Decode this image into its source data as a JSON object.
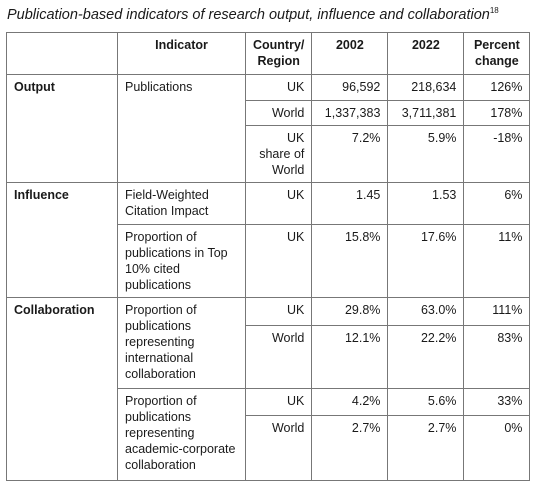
{
  "header": {
    "title": "Publication-based indicators of research output, influence and collaboration",
    "footnote": "18"
  },
  "table": {
    "columns": [
      "Indicator",
      "Country/ Region",
      "2002",
      "2022",
      "Percent change"
    ],
    "groups": [
      {
        "label": "Output",
        "indicators": [
          {
            "label": "Publications",
            "rows": [
              [
                "UK",
                "96,592",
                "218,634",
                "126%"
              ],
              [
                "World",
                "1,337,383",
                "3,711,381",
                "178%"
              ],
              [
                "UK share of World",
                "7.2%",
                "5.9%",
                "-18%"
              ]
            ]
          }
        ]
      },
      {
        "label": "Influence",
        "indicators": [
          {
            "label": "Field-Weighted Citation Impact",
            "rows": [
              [
                "UK",
                "1.45",
                "1.53",
                "6%"
              ]
            ]
          },
          {
            "label": "Proportion of publications in Top 10% cited publications",
            "rows": [
              [
                "UK",
                "15.8%",
                "17.6%",
                "11%"
              ]
            ]
          }
        ]
      },
      {
        "label": "Collaboration",
        "indicators": [
          {
            "label": "Proportion of publications representing international collaboration",
            "rows": [
              [
                "UK",
                "29.8%",
                "63.0%",
                "111%"
              ],
              [
                "World",
                "12.1%",
                "22.2%",
                "83%"
              ]
            ]
          },
          {
            "label": "Proportion of publications representing academic-corporate collaboration",
            "rows": [
              [
                "UK",
                "4.2%",
                "5.6%",
                "33%"
              ],
              [
                "World",
                "2.7%",
                "2.7%",
                "0%"
              ]
            ]
          }
        ]
      }
    ]
  }
}
